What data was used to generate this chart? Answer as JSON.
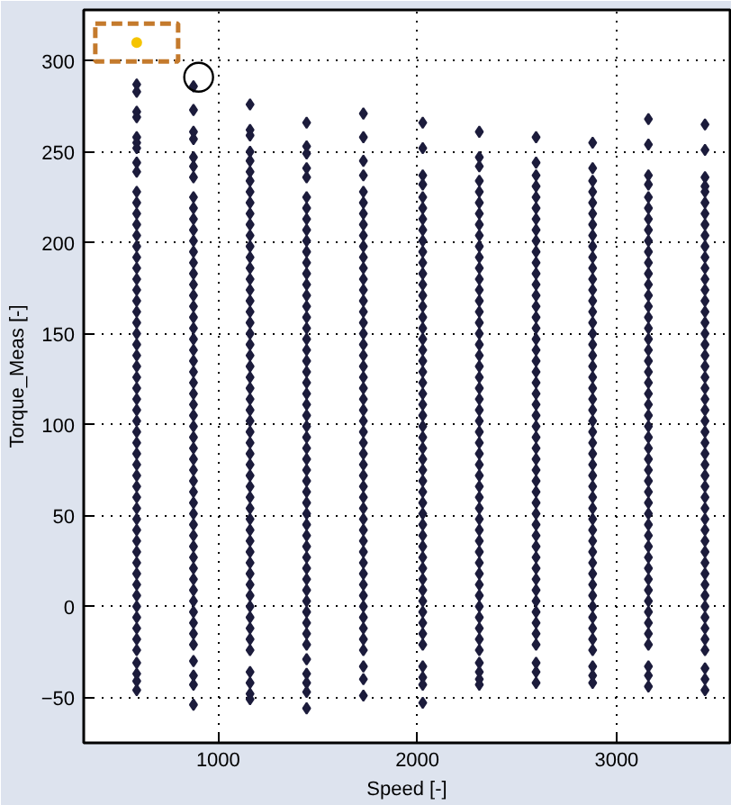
{
  "chart_data": {
    "type": "scatter",
    "xlabel": "Speed [-]",
    "ylabel": "Torque_Meas [-]",
    "xlim": [
      325,
      3570
    ],
    "ylim": [
      -75,
      328
    ],
    "xticks": [
      1000,
      2000,
      3000
    ],
    "yticks": [
      -50,
      0,
      50,
      100,
      150,
      200,
      250,
      300
    ],
    "grid": true,
    "marker": "diamond",
    "series": [
      {
        "color": "#1c1c3c",
        "x": [
          591,
          591,
          591,
          591,
          591,
          591,
          591,
          591,
          591,
          591,
          591,
          591,
          591,
          591,
          591,
          591,
          591,
          591,
          591,
          591,
          591,
          591,
          591,
          591,
          591,
          591,
          591,
          591,
          591,
          591,
          591,
          591,
          591,
          591,
          591,
          591,
          591,
          591,
          591,
          591,
          591,
          591,
          591,
          591,
          591,
          591,
          591,
          591,
          591,
          591,
          591,
          591,
          591,
          591,
          591,
          591
        ],
        "values": [
          287,
          283,
          272,
          269,
          258,
          255,
          252,
          244,
          239,
          228,
          222,
          216,
          210,
          204,
          198,
          192,
          186,
          180,
          174,
          168,
          162,
          156,
          150,
          144,
          138,
          132,
          126,
          120,
          114,
          108,
          102,
          96,
          90,
          84,
          78,
          72,
          66,
          60,
          54,
          48,
          42,
          36,
          30,
          24,
          18,
          12,
          6,
          0,
          -6,
          -12,
          -18,
          -24,
          -31,
          -37,
          -41,
          -46
        ]
      },
      {
        "color": "#1c1c3c",
        "x": [
          876,
          876,
          876,
          876,
          876,
          876,
          876,
          876,
          876,
          876,
          876,
          876,
          876,
          876,
          876,
          876,
          876,
          876,
          876,
          876,
          876,
          876,
          876,
          876,
          876,
          876,
          876,
          876,
          876,
          876,
          876,
          876,
          876,
          876,
          876,
          876,
          876,
          876,
          876,
          876,
          876,
          876,
          876,
          876,
          876,
          876,
          876,
          876,
          876,
          876,
          876,
          876,
          876
        ],
        "values": [
          286,
          273,
          261,
          257,
          247,
          242,
          236,
          225,
          219,
          213,
          207,
          201,
          195,
          189,
          183,
          177,
          171,
          165,
          159,
          153,
          147,
          141,
          135,
          129,
          123,
          117,
          111,
          105,
          99,
          93,
          87,
          81,
          75,
          69,
          63,
          57,
          51,
          45,
          39,
          33,
          27,
          21,
          15,
          9,
          3,
          -3,
          -9,
          -15,
          -21,
          -30,
          -38,
          -43,
          -54
        ]
      },
      {
        "color": "#1c1c3c",
        "x": [
          1160,
          1160,
          1160,
          1160,
          1160,
          1160,
          1160,
          1160,
          1160,
          1160,
          1160,
          1160,
          1160,
          1160,
          1160,
          1160,
          1160,
          1160,
          1160,
          1160,
          1160,
          1160,
          1160,
          1160,
          1160,
          1160,
          1160,
          1160,
          1160,
          1160,
          1160,
          1160,
          1160,
          1160,
          1160,
          1160,
          1160,
          1160,
          1160,
          1160,
          1160,
          1160,
          1160,
          1160,
          1160,
          1160,
          1160,
          1160,
          1160,
          1160,
          1160,
          1160,
          1160,
          1160
        ],
        "values": [
          276,
          262,
          259,
          250,
          245,
          239,
          234,
          228,
          222,
          216,
          210,
          204,
          198,
          192,
          186,
          180,
          174,
          168,
          162,
          156,
          150,
          144,
          138,
          132,
          126,
          120,
          114,
          108,
          102,
          96,
          90,
          84,
          78,
          72,
          66,
          60,
          54,
          48,
          42,
          36,
          30,
          24,
          18,
          12,
          6,
          0,
          -6,
          -12,
          -18,
          -24,
          -36,
          -42,
          -48,
          -51
        ]
      },
      {
        "color": "#1c1c3c",
        "x": [
          1444,
          1444,
          1444,
          1444,
          1444,
          1444,
          1444,
          1444,
          1444,
          1444,
          1444,
          1444,
          1444,
          1444,
          1444,
          1444,
          1444,
          1444,
          1444,
          1444,
          1444,
          1444,
          1444,
          1444,
          1444,
          1444,
          1444,
          1444,
          1444,
          1444,
          1444,
          1444,
          1444,
          1444,
          1444,
          1444,
          1444,
          1444,
          1444,
          1444,
          1444,
          1444,
          1444,
          1444,
          1444,
          1444,
          1444,
          1444,
          1444,
          1444,
          1444,
          1444
        ],
        "values": [
          266,
          253,
          249,
          241,
          236,
          225,
          219,
          213,
          207,
          201,
          195,
          189,
          183,
          177,
          171,
          165,
          159,
          153,
          147,
          141,
          135,
          129,
          123,
          117,
          111,
          105,
          99,
          93,
          87,
          81,
          75,
          69,
          63,
          57,
          51,
          45,
          39,
          33,
          27,
          21,
          15,
          9,
          3,
          -3,
          -9,
          -15,
          -21,
          -29,
          -37,
          -42,
          -47,
          -56
        ]
      },
      {
        "color": "#1c1c3c",
        "x": [
          1729,
          1729,
          1729,
          1729,
          1729,
          1729,
          1729,
          1729,
          1729,
          1729,
          1729,
          1729,
          1729,
          1729,
          1729,
          1729,
          1729,
          1729,
          1729,
          1729,
          1729,
          1729,
          1729,
          1729,
          1729,
          1729,
          1729,
          1729,
          1729,
          1729,
          1729,
          1729,
          1729,
          1729,
          1729,
          1729,
          1729,
          1729,
          1729,
          1729,
          1729,
          1729,
          1729,
          1729,
          1729,
          1729,
          1729,
          1729,
          1729,
          1729
        ],
        "values": [
          271,
          258,
          245,
          237,
          228,
          222,
          216,
          210,
          204,
          198,
          192,
          186,
          180,
          174,
          168,
          162,
          156,
          150,
          144,
          138,
          132,
          126,
          120,
          114,
          108,
          102,
          96,
          90,
          84,
          78,
          72,
          66,
          60,
          54,
          48,
          42,
          36,
          30,
          24,
          18,
          12,
          6,
          0,
          -6,
          -12,
          -18,
          -24,
          -33,
          -40,
          -49
        ]
      },
      {
        "color": "#1c1c3c",
        "x": [
          2027,
          2027,
          2027,
          2027,
          2027,
          2027,
          2027,
          2027,
          2027,
          2027,
          2027,
          2027,
          2027,
          2027,
          2027,
          2027,
          2027,
          2027,
          2027,
          2027,
          2027,
          2027,
          2027,
          2027,
          2027,
          2027,
          2027,
          2027,
          2027,
          2027,
          2027,
          2027,
          2027,
          2027,
          2027,
          2027,
          2027,
          2027,
          2027,
          2027,
          2027,
          2027,
          2027,
          2027,
          2027,
          2027,
          2027,
          2027,
          2027,
          2027
        ],
        "values": [
          266,
          252,
          237,
          232,
          225,
          219,
          213,
          207,
          201,
          195,
          189,
          183,
          177,
          171,
          165,
          159,
          153,
          147,
          141,
          135,
          129,
          123,
          117,
          111,
          105,
          99,
          93,
          87,
          81,
          75,
          69,
          63,
          57,
          51,
          45,
          39,
          33,
          27,
          21,
          15,
          9,
          3,
          -3,
          -9,
          -15,
          -21,
          -33,
          -39,
          -43,
          -53
        ]
      },
      {
        "color": "#1c1c3c",
        "x": [
          2311,
          2311,
          2311,
          2311,
          2311,
          2311,
          2311,
          2311,
          2311,
          2311,
          2311,
          2311,
          2311,
          2311,
          2311,
          2311,
          2311,
          2311,
          2311,
          2311,
          2311,
          2311,
          2311,
          2311,
          2311,
          2311,
          2311,
          2311,
          2311,
          2311,
          2311,
          2311,
          2311,
          2311,
          2311,
          2311,
          2311,
          2311,
          2311,
          2311,
          2311,
          2311,
          2311,
          2311,
          2311,
          2311,
          2311,
          2311,
          2311,
          2311,
          2311
        ],
        "values": [
          261,
          247,
          242,
          234,
          228,
          222,
          216,
          210,
          204,
          198,
          192,
          186,
          180,
          174,
          168,
          162,
          156,
          150,
          144,
          138,
          132,
          126,
          120,
          114,
          108,
          102,
          96,
          90,
          84,
          78,
          72,
          66,
          60,
          54,
          48,
          42,
          36,
          30,
          24,
          18,
          12,
          6,
          0,
          -6,
          -12,
          -18,
          -24,
          -31,
          -36,
          -40,
          -43
        ]
      },
      {
        "color": "#1c1c3c",
        "x": [
          2596,
          2596,
          2596,
          2596,
          2596,
          2596,
          2596,
          2596,
          2596,
          2596,
          2596,
          2596,
          2596,
          2596,
          2596,
          2596,
          2596,
          2596,
          2596,
          2596,
          2596,
          2596,
          2596,
          2596,
          2596,
          2596,
          2596,
          2596,
          2596,
          2596,
          2596,
          2596,
          2596,
          2596,
          2596,
          2596,
          2596,
          2596,
          2596,
          2596,
          2596,
          2596,
          2596,
          2596,
          2596,
          2596,
          2596,
          2596,
          2596
        ],
        "values": [
          258,
          244,
          237,
          231,
          225,
          219,
          213,
          207,
          201,
          195,
          189,
          183,
          177,
          171,
          165,
          159,
          153,
          147,
          141,
          135,
          129,
          123,
          117,
          111,
          105,
          99,
          93,
          87,
          81,
          75,
          69,
          63,
          57,
          51,
          45,
          39,
          33,
          27,
          21,
          15,
          9,
          3,
          -3,
          -9,
          -15,
          -21,
          -31,
          -36,
          -42
        ]
      },
      {
        "color": "#1c1c3c",
        "x": [
          2880,
          2880,
          2880,
          2880,
          2880,
          2880,
          2880,
          2880,
          2880,
          2880,
          2880,
          2880,
          2880,
          2880,
          2880,
          2880,
          2880,
          2880,
          2880,
          2880,
          2880,
          2880,
          2880,
          2880,
          2880,
          2880,
          2880,
          2880,
          2880,
          2880,
          2880,
          2880,
          2880,
          2880,
          2880,
          2880,
          2880,
          2880,
          2880,
          2880,
          2880,
          2880,
          2880,
          2880,
          2880,
          2880,
          2880,
          2880,
          2880
        ],
        "values": [
          255,
          241,
          234,
          228,
          222,
          216,
          210,
          204,
          198,
          192,
          186,
          180,
          174,
          168,
          162,
          156,
          150,
          144,
          138,
          132,
          126,
          120,
          114,
          108,
          102,
          96,
          90,
          84,
          78,
          72,
          66,
          60,
          54,
          48,
          42,
          36,
          30,
          24,
          18,
          12,
          6,
          0,
          -6,
          -12,
          -18,
          -24,
          -33,
          -38,
          -42
        ]
      },
      {
        "color": "#1c1c3c",
        "x": [
          3160,
          3160,
          3160,
          3160,
          3160,
          3160,
          3160,
          3160,
          3160,
          3160,
          3160,
          3160,
          3160,
          3160,
          3160,
          3160,
          3160,
          3160,
          3160,
          3160,
          3160,
          3160,
          3160,
          3160,
          3160,
          3160,
          3160,
          3160,
          3160,
          3160,
          3160,
          3160,
          3160,
          3160,
          3160,
          3160,
          3160,
          3160,
          3160,
          3160,
          3160,
          3160,
          3160,
          3160,
          3160,
          3160,
          3160,
          3160,
          3160
        ],
        "values": [
          268,
          254,
          237,
          232,
          225,
          219,
          213,
          207,
          201,
          195,
          189,
          183,
          177,
          171,
          165,
          159,
          153,
          147,
          141,
          135,
          129,
          123,
          117,
          111,
          105,
          99,
          93,
          87,
          81,
          75,
          69,
          63,
          57,
          51,
          45,
          39,
          33,
          27,
          21,
          15,
          9,
          3,
          -3,
          -9,
          -15,
          -21,
          -33,
          -38,
          -44
        ]
      },
      {
        "color": "#1c1c3c",
        "x": [
          3444,
          3444,
          3444,
          3444,
          3444,
          3444,
          3444,
          3444,
          3444,
          3444,
          3444,
          3444,
          3444,
          3444,
          3444,
          3444,
          3444,
          3444,
          3444,
          3444,
          3444,
          3444,
          3444,
          3444,
          3444,
          3444,
          3444,
          3444,
          3444,
          3444,
          3444,
          3444,
          3444,
          3444,
          3444,
          3444,
          3444,
          3444,
          3444,
          3444,
          3444,
          3444,
          3444,
          3444,
          3444,
          3444,
          3444,
          3444,
          3444,
          3444
        ],
        "values": [
          265,
          251,
          236,
          231,
          228,
          222,
          216,
          210,
          204,
          198,
          192,
          186,
          180,
          174,
          168,
          162,
          156,
          150,
          144,
          138,
          132,
          126,
          120,
          114,
          108,
          102,
          96,
          90,
          84,
          78,
          72,
          66,
          60,
          54,
          48,
          42,
          36,
          30,
          24,
          18,
          12,
          6,
          0,
          -6,
          -12,
          -18,
          -24,
          -34,
          -40,
          -46
        ]
      },
      {
        "color": "#f5c400",
        "marker": "circle",
        "x": [
          591
        ],
        "values": [
          310
        ]
      },
      {
        "type": "bubble",
        "marker": "circle",
        "color": "#000000",
        "x": [
          902
        ],
        "values": [
          291
        ],
        "sizes": [
          1
        ]
      }
    ]
  }
}
